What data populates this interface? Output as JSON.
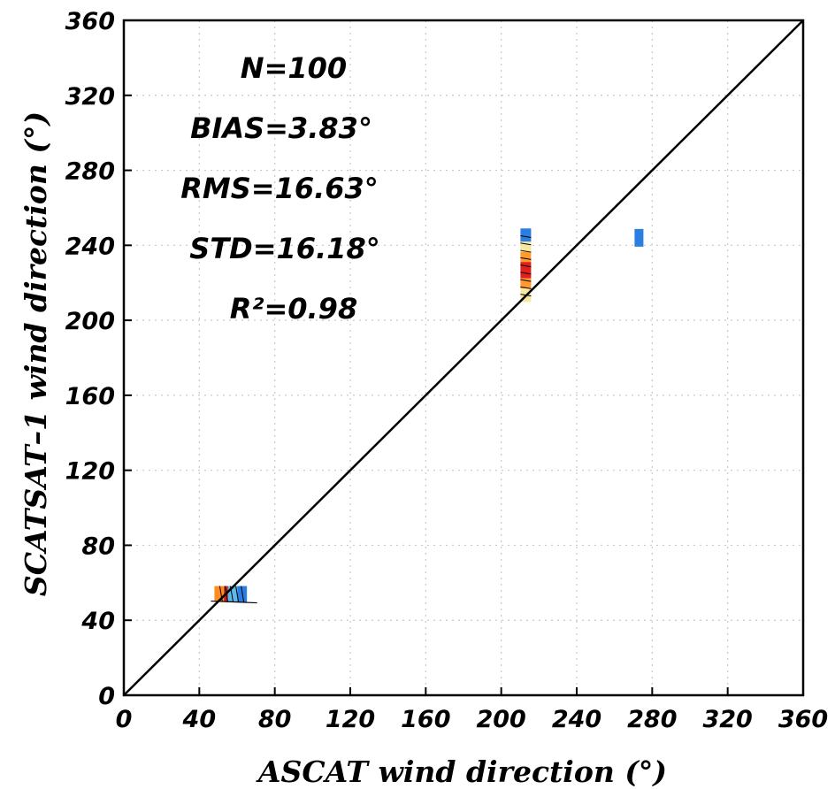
{
  "chart_data": {
    "type": "scatter",
    "xlabel": "ASCAT wind direction (°)",
    "ylabel": "SCATSAT–1 wind direction (°)",
    "xlim": [
      0,
      360
    ],
    "ylim": [
      0,
      360
    ],
    "xticks": [
      "0",
      "40",
      "80",
      "120",
      "160",
      "200",
      "240",
      "280",
      "320",
      "360"
    ],
    "yticks": [
      "0",
      "40",
      "80",
      "120",
      "160",
      "200",
      "240",
      "280",
      "320",
      "360"
    ],
    "grid": true,
    "reference_line": "1:1",
    "stats": [
      "N=100",
      "BIAS=3.83°",
      "RMS=16.63°",
      "STD=16.18°",
      "R²=0.98"
    ],
    "density_clusters": [
      {
        "x": 213,
        "y_range": [
          210,
          249
        ],
        "colors": [
          "#2a7de1",
          "#f7e8a0",
          "#ff9a2e",
          "#e02020"
        ]
      },
      {
        "x_range": [
          48,
          65
        ],
        "y": 54,
        "colors": [
          "#5fb8e8",
          "#2a7de1",
          "#ff8c20",
          "#c02020"
        ]
      }
    ],
    "points": [
      {
        "x": 273,
        "y": 244,
        "color": "#2a7de1"
      }
    ]
  }
}
